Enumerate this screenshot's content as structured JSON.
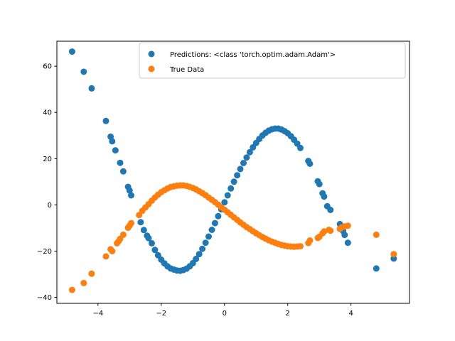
{
  "chart_data": {
    "type": "scatter",
    "title": "",
    "xlabel": "",
    "ylabel": "",
    "xlim": [
      -5.3,
      5.85
    ],
    "ylim": [
      -42.6,
      70.8
    ],
    "xticks": [
      -4,
      -2,
      0,
      2,
      4
    ],
    "yticks": [
      -40,
      -20,
      0,
      20,
      40,
      60
    ],
    "grid": false,
    "legend": {
      "position": "top-right"
    },
    "series": [
      {
        "name": "Predictions: <class 'torch.optim.adam.Adam'>",
        "color": "#1f77b4",
        "marker_style": "circle",
        "points": [
          [
            -4.82,
            66.3
          ],
          [
            -4.45,
            57.6
          ],
          [
            -4.2,
            50.4
          ],
          [
            -3.75,
            36.3
          ],
          [
            -3.6,
            29.5
          ],
          [
            -3.55,
            27.5
          ],
          [
            -3.45,
            23.6
          ],
          [
            -3.3,
            18.2
          ],
          [
            -3.2,
            14.5
          ],
          [
            -3.05,
            7.8
          ],
          [
            -3.0,
            6.2
          ],
          [
            -2.95,
            4.1
          ],
          [
            -2.65,
            -7.5
          ],
          [
            -2.55,
            -10.9
          ],
          [
            -2.45,
            -13.3
          ],
          [
            -2.4,
            -14.4
          ],
          [
            -2.3,
            -16.6
          ],
          [
            -2.2,
            -19.5
          ],
          [
            -2.1,
            -21.8
          ],
          [
            -2.0,
            -23.7
          ],
          [
            -1.9,
            -25.3
          ],
          [
            -1.8,
            -26.6
          ],
          [
            -1.7,
            -27.5
          ],
          [
            -1.6,
            -28.0
          ],
          [
            -1.5,
            -28.4
          ],
          [
            -1.4,
            -28.5
          ],
          [
            -1.3,
            -28.2
          ],
          [
            -1.2,
            -27.6
          ],
          [
            -1.1,
            -26.6
          ],
          [
            -1.0,
            -25.2
          ],
          [
            -0.9,
            -23.4
          ],
          [
            -0.8,
            -21.3
          ],
          [
            -0.7,
            -19.0
          ],
          [
            -0.6,
            -16.4
          ],
          [
            -0.5,
            -13.7
          ],
          [
            -0.4,
            -10.8
          ],
          [
            -0.3,
            -7.9
          ],
          [
            -0.2,
            -4.9
          ],
          [
            -0.1,
            -1.9
          ],
          [
            0.0,
            1.1
          ],
          [
            0.1,
            4.1
          ],
          [
            0.2,
            7.1
          ],
          [
            0.3,
            10.0
          ],
          [
            0.4,
            12.8
          ],
          [
            0.5,
            15.5
          ],
          [
            0.6,
            18.1
          ],
          [
            0.7,
            20.5
          ],
          [
            0.8,
            22.8
          ],
          [
            0.9,
            24.9
          ],
          [
            1.0,
            26.8
          ],
          [
            1.1,
            28.5
          ],
          [
            1.2,
            30.0
          ],
          [
            1.3,
            31.2
          ],
          [
            1.4,
            32.1
          ],
          [
            1.5,
            32.7
          ],
          [
            1.6,
            33.0
          ],
          [
            1.7,
            33.0
          ],
          [
            1.8,
            32.6
          ],
          [
            1.9,
            31.9
          ],
          [
            2.0,
            31.0
          ],
          [
            2.1,
            29.7
          ],
          [
            2.2,
            28.2
          ],
          [
            2.3,
            26.5
          ],
          [
            2.4,
            24.6
          ],
          [
            2.65,
            19.0
          ],
          [
            2.7,
            17.8
          ],
          [
            2.95,
            10.2
          ],
          [
            3.0,
            9.0
          ],
          [
            3.1,
            5.0
          ],
          [
            3.15,
            3.6
          ],
          [
            3.25,
            -0.6
          ],
          [
            3.35,
            -2.2
          ],
          [
            3.65,
            -8.3
          ],
          [
            3.7,
            -9.6
          ],
          [
            3.75,
            -11.3
          ],
          [
            3.8,
            -13.0
          ],
          [
            3.9,
            -16.4
          ],
          [
            4.8,
            -27.5
          ],
          [
            5.35,
            -23.2
          ]
        ]
      },
      {
        "name": "True Data",
        "color": "#ff7f0e",
        "marker_style": "circle",
        "points": [
          [
            -4.82,
            -36.8
          ],
          [
            -4.45,
            -33.8
          ],
          [
            -4.2,
            -29.8
          ],
          [
            -3.75,
            -22.3
          ],
          [
            -3.6,
            -19.2
          ],
          [
            -3.55,
            -20.0
          ],
          [
            -3.4,
            -16.6
          ],
          [
            -3.35,
            -15.8
          ],
          [
            -3.3,
            -14.7
          ],
          [
            -3.2,
            -12.9
          ],
          [
            -3.05,
            -9.9
          ],
          [
            -3.0,
            -9.0
          ],
          [
            -2.95,
            -7.9
          ],
          [
            -2.7,
            -4.4
          ],
          [
            -2.6,
            -2.6
          ],
          [
            -2.5,
            -1.1
          ],
          [
            -2.4,
            0.3
          ],
          [
            -2.3,
            1.8
          ],
          [
            -2.2,
            3.2
          ],
          [
            -2.1,
            4.4
          ],
          [
            -2.0,
            5.5
          ],
          [
            -1.9,
            6.3
          ],
          [
            -1.8,
            7.1
          ],
          [
            -1.7,
            7.7
          ],
          [
            -1.6,
            8.0
          ],
          [
            -1.5,
            8.3
          ],
          [
            -1.4,
            8.4
          ],
          [
            -1.3,
            8.4
          ],
          [
            -1.2,
            8.2
          ],
          [
            -1.1,
            7.8
          ],
          [
            -1.0,
            7.3
          ],
          [
            -0.9,
            6.7
          ],
          [
            -0.8,
            5.9
          ],
          [
            -0.7,
            5.1
          ],
          [
            -0.6,
            4.2
          ],
          [
            -0.5,
            3.2
          ],
          [
            -0.4,
            2.2
          ],
          [
            -0.3,
            1.2
          ],
          [
            -0.2,
            0.1
          ],
          [
            -0.1,
            -1.0
          ],
          [
            0.0,
            -2.1
          ],
          [
            0.1,
            -3.2
          ],
          [
            0.2,
            -4.3
          ],
          [
            0.3,
            -5.4
          ],
          [
            0.4,
            -6.5
          ],
          [
            0.5,
            -7.6
          ],
          [
            0.6,
            -8.6
          ],
          [
            0.7,
            -9.6
          ],
          [
            0.8,
            -10.5
          ],
          [
            0.9,
            -11.4
          ],
          [
            1.0,
            -12.3
          ],
          [
            1.1,
            -13.1
          ],
          [
            1.2,
            -13.9
          ],
          [
            1.3,
            -14.6
          ],
          [
            1.4,
            -15.3
          ],
          [
            1.5,
            -15.9
          ],
          [
            1.6,
            -16.4
          ],
          [
            1.7,
            -16.9
          ],
          [
            1.8,
            -17.3
          ],
          [
            1.9,
            -17.6
          ],
          [
            2.0,
            -17.9
          ],
          [
            2.1,
            -18.0
          ],
          [
            2.2,
            -18.1
          ],
          [
            2.3,
            -18.0
          ],
          [
            2.4,
            -17.9
          ],
          [
            2.65,
            -16.5
          ],
          [
            2.7,
            -15.4
          ],
          [
            2.95,
            -14.3
          ],
          [
            3.0,
            -13.8
          ],
          [
            3.1,
            -12.3
          ],
          [
            3.15,
            -11.5
          ],
          [
            3.3,
            -10.8
          ],
          [
            3.35,
            -11.2
          ],
          [
            3.65,
            -10.4
          ],
          [
            3.7,
            -9.8
          ],
          [
            3.8,
            -9.3
          ],
          [
            3.9,
            -9.0
          ],
          [
            4.8,
            -12.9
          ],
          [
            5.35,
            -21.3
          ]
        ]
      }
    ]
  }
}
